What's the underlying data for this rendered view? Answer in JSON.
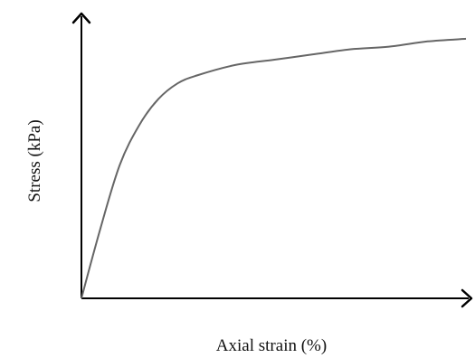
{
  "chart_data": {
    "type": "line",
    "title": "",
    "xlabel": "Axial strain (%)",
    "ylabel": "Stress (kPa)",
    "xlim": [
      0,
      1
    ],
    "ylim": [
      0,
      1
    ],
    "grid": false,
    "legend": "none",
    "tick_labels": {
      "x": [],
      "y": []
    },
    "series": [
      {
        "x": [
          0.0,
          0.05,
          0.1,
          0.15,
          0.2,
          0.25,
          0.3,
          0.4,
          0.5,
          0.6,
          0.7,
          0.8,
          0.9,
          1.0
        ],
        "y": [
          0.0,
          0.27,
          0.51,
          0.66,
          0.76,
          0.82,
          0.85,
          0.89,
          0.91,
          0.93,
          0.95,
          0.96,
          0.98,
          0.99
        ]
      }
    ]
  },
  "colors": {
    "axis": "#000000",
    "curve": "#666666"
  }
}
